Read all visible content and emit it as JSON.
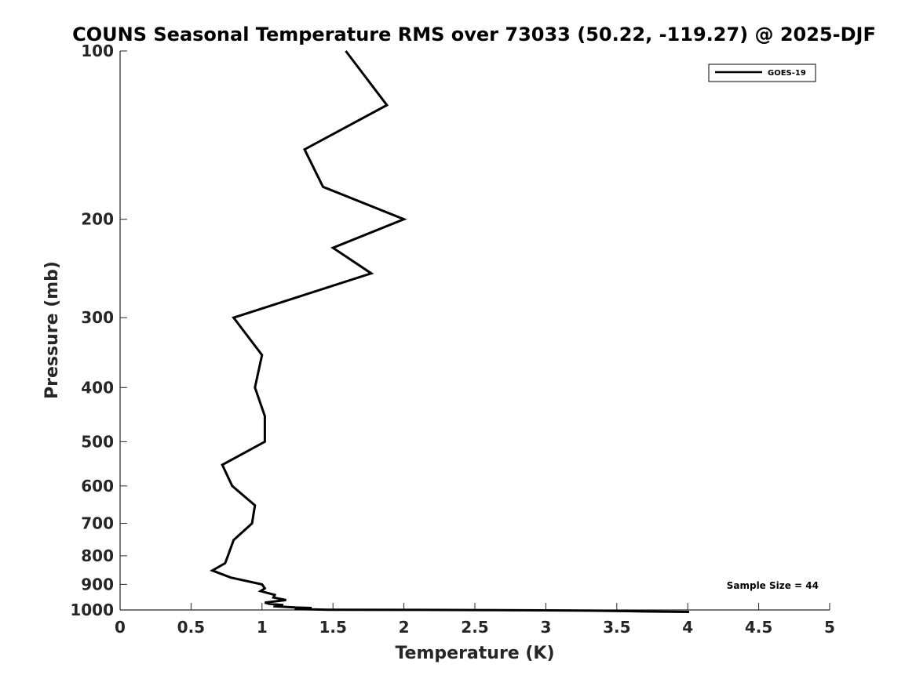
{
  "chart_data": {
    "type": "line",
    "title": "COUNS Seasonal Temperature RMS over 73033 (50.22, -119.27) @ 2025-DJF",
    "xlabel": "Temperature (K)",
    "ylabel": "Pressure (mb)",
    "xlim": [
      0,
      5
    ],
    "ylim": [
      100,
      1000
    ],
    "y_scale": "log",
    "y_reversed": true,
    "x_ticks": [
      "0",
      "0.5",
      "1",
      "1.5",
      "2",
      "2.5",
      "3",
      "3.5",
      "4",
      "4.5",
      "5"
    ],
    "x_tick_values": [
      0,
      0.5,
      1,
      1.5,
      2,
      2.5,
      3,
      3.5,
      4,
      4.5,
      5
    ],
    "y_ticks": [
      "100",
      "200",
      "300",
      "400",
      "500",
      "600",
      "700",
      "800",
      "900",
      "1000"
    ],
    "y_tick_values": [
      100,
      200,
      300,
      400,
      500,
      600,
      700,
      800,
      900,
      1000
    ],
    "grid": false,
    "legend_position": "top-right",
    "series": [
      {
        "name": "GOES-19",
        "color": "#000000",
        "points": [
          [
            1.59,
            100
          ],
          [
            1.88,
            125
          ],
          [
            1.3,
            150
          ],
          [
            1.43,
            175
          ],
          [
            2.0,
            200
          ],
          [
            1.5,
            225
          ],
          [
            1.77,
            250
          ],
          [
            0.8,
            300
          ],
          [
            1.0,
            350
          ],
          [
            0.95,
            400
          ],
          [
            1.02,
            450
          ],
          [
            1.02,
            500
          ],
          [
            0.72,
            550
          ],
          [
            0.79,
            600
          ],
          [
            0.95,
            650
          ],
          [
            0.93,
            700
          ],
          [
            0.8,
            750
          ],
          [
            0.76,
            800
          ],
          [
            0.74,
            825
          ],
          [
            0.65,
            850
          ],
          [
            0.78,
            875
          ],
          [
            1.0,
            900
          ],
          [
            1.02,
            915
          ],
          [
            0.99,
            925
          ],
          [
            1.09,
            940
          ],
          [
            1.08,
            950
          ],
          [
            1.17,
            960
          ],
          [
            1.02,
            970
          ],
          [
            1.05,
            975
          ],
          [
            1.15,
            980
          ],
          [
            1.08,
            985
          ],
          [
            1.24,
            990
          ],
          [
            1.35,
            992
          ],
          [
            1.31,
            994
          ],
          [
            1.23,
            996
          ],
          [
            1.38,
            998
          ],
          [
            1.46,
            999
          ],
          [
            2.1,
            999.8
          ],
          [
            2.98,
            1001.5
          ],
          [
            3.3,
            1003
          ],
          [
            3.58,
            1005
          ],
          [
            3.68,
            1006
          ],
          [
            4.01,
            1008
          ]
        ]
      }
    ],
    "annotation": "Sample Size = 44"
  }
}
